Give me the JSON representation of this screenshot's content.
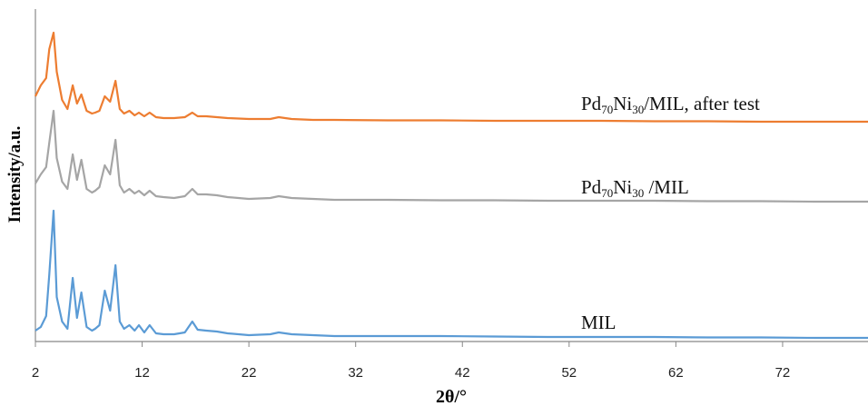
{
  "chart_data": {
    "type": "line",
    "xlabel": "2θ/°",
    "ylabel": "Intensity/a.u.",
    "xlim": [
      2,
      80
    ],
    "xticks": [
      "2",
      "12",
      "22",
      "32",
      "42",
      "52",
      "62",
      "72"
    ],
    "yticks": [],
    "grid": false,
    "legend": "none",
    "series": [
      {
        "name": "MIL",
        "label_parts": [
          "MIL"
        ],
        "color": "#5b9bd5",
        "offset": 0,
        "x": [
          2,
          2.5,
          3,
          3.3,
          3.7,
          4.0,
          4.5,
          5.0,
          5.5,
          5.9,
          6.3,
          6.8,
          7.3,
          7.6,
          8.0,
          8.5,
          9.0,
          9.5,
          9.9,
          10.3,
          10.8,
          11.3,
          11.7,
          12.2,
          12.7,
          13.3,
          14,
          15,
          16,
          16.7,
          17.2,
          18,
          19,
          20,
          22,
          24,
          24.8,
          26,
          28,
          30,
          35,
          40,
          45,
          50,
          55,
          60,
          65,
          70,
          75,
          80
        ],
        "y": [
          8,
          12,
          24,
          70,
          140,
          45,
          18,
          10,
          66,
          22,
          50,
          12,
          8,
          10,
          14,
          52,
          30,
          80,
          18,
          10,
          14,
          8,
          14,
          6,
          14,
          5,
          4,
          4,
          6,
          18,
          9,
          8,
          7,
          5,
          3,
          4,
          6,
          4,
          3,
          2,
          2,
          2,
          1.5,
          1,
          1,
          1,
          0.5,
          0.5,
          0,
          0
        ]
      },
      {
        "name": "Pd70Ni30/MIL",
        "label_parts": [
          "Pd",
          "70",
          "Ni",
          "30",
          " /MIL"
        ],
        "color": "#a5a5a5",
        "offset": 150,
        "x": [
          2,
          2.5,
          3,
          3.3,
          3.7,
          4.0,
          4.5,
          5.0,
          5.5,
          5.9,
          6.3,
          6.8,
          7.3,
          7.6,
          8.0,
          8.5,
          9.0,
          9.5,
          9.9,
          10.3,
          10.8,
          11.3,
          11.7,
          12.2,
          12.7,
          13.3,
          14,
          15,
          16,
          16.7,
          17.2,
          18,
          19,
          20,
          22,
          24,
          24.8,
          26,
          28,
          30,
          35,
          40,
          45,
          50,
          55,
          60,
          65,
          70,
          75,
          80
        ],
        "y": [
          20,
          30,
          38,
          65,
          100,
          48,
          22,
          14,
          52,
          24,
          46,
          14,
          10,
          12,
          16,
          40,
          30,
          68,
          18,
          10,
          14,
          9,
          12,
          7,
          12,
          6,
          5,
          4,
          6,
          14,
          8,
          8,
          7,
          5,
          3,
          4,
          6,
          4,
          3,
          2,
          2,
          1.5,
          1.5,
          1,
          1,
          1,
          0.5,
          0.5,
          0,
          0
        ]
      },
      {
        "name": "Pd70Ni30/MIL, after test",
        "label_parts": [
          "Pd",
          "70",
          "Ni",
          "30",
          "/MIL, after test"
        ],
        "color": "#ed7d31",
        "offset": 238,
        "x": [
          2,
          2.5,
          3,
          3.3,
          3.7,
          4.0,
          4.5,
          5.0,
          5.5,
          5.9,
          6.3,
          6.8,
          7.3,
          7.6,
          8.0,
          8.5,
          9.0,
          9.5,
          9.9,
          10.3,
          10.8,
          11.3,
          11.7,
          12.2,
          12.7,
          13.3,
          14,
          15,
          16,
          16.7,
          17.2,
          18,
          19,
          20,
          22,
          24,
          24.8,
          26,
          28,
          30,
          35,
          40,
          45,
          50,
          55,
          60,
          65,
          70,
          75,
          80
        ],
        "y": [
          28,
          40,
          48,
          80,
          98,
          55,
          24,
          14,
          40,
          20,
          30,
          12,
          9,
          10,
          12,
          28,
          22,
          45,
          14,
          9,
          12,
          7,
          10,
          6,
          10,
          5,
          4,
          4,
          5,
          10,
          6,
          6,
          5,
          4,
          3,
          3,
          5,
          3,
          2,
          2,
          1.5,
          1.5,
          1,
          1,
          1,
          0.5,
          0.5,
          0,
          0,
          0
        ]
      }
    ]
  }
}
